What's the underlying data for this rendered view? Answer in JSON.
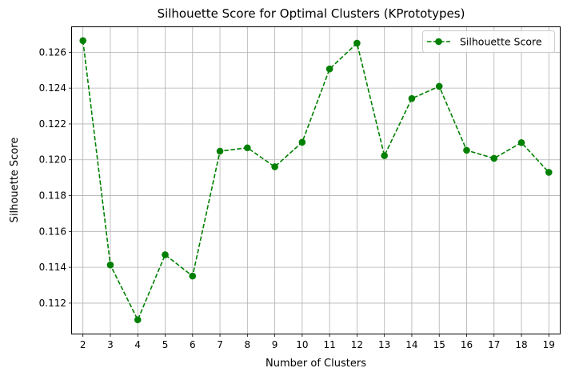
{
  "chart_data": {
    "type": "line",
    "title": "Silhouette Score for Optimal Clusters (KPrototypes)",
    "xlabel": "Number of Clusters",
    "ylabel": "Silhouette Score",
    "x": [
      2,
      3,
      4,
      5,
      6,
      7,
      8,
      9,
      10,
      11,
      12,
      13,
      14,
      15,
      16,
      17,
      18,
      19
    ],
    "series": [
      {
        "name": "Silhouette Score",
        "values": [
          0.12665,
          0.11413,
          0.11107,
          0.1147,
          0.11351,
          0.12048,
          0.12067,
          0.11961,
          0.12098,
          0.12507,
          0.12651,
          0.12023,
          0.12342,
          0.1241,
          0.12053,
          0.12008,
          0.12096,
          0.1193
        ],
        "color": "#008000",
        "line_style": "dashed",
        "marker": "circle"
      }
    ],
    "xlim": [
      1.6,
      19.4
    ],
    "ylim": [
      0.1103,
      0.1274
    ],
    "x_ticks": [
      "2",
      "3",
      "4",
      "5",
      "6",
      "7",
      "8",
      "9",
      "10",
      "11",
      "12",
      "13",
      "14",
      "15",
      "16",
      "17",
      "18",
      "19"
    ],
    "y_ticks": [
      "0.112",
      "0.114",
      "0.116",
      "0.118",
      "0.120",
      "0.122",
      "0.124",
      "0.126"
    ],
    "grid": true,
    "legend_position": "top-right"
  }
}
